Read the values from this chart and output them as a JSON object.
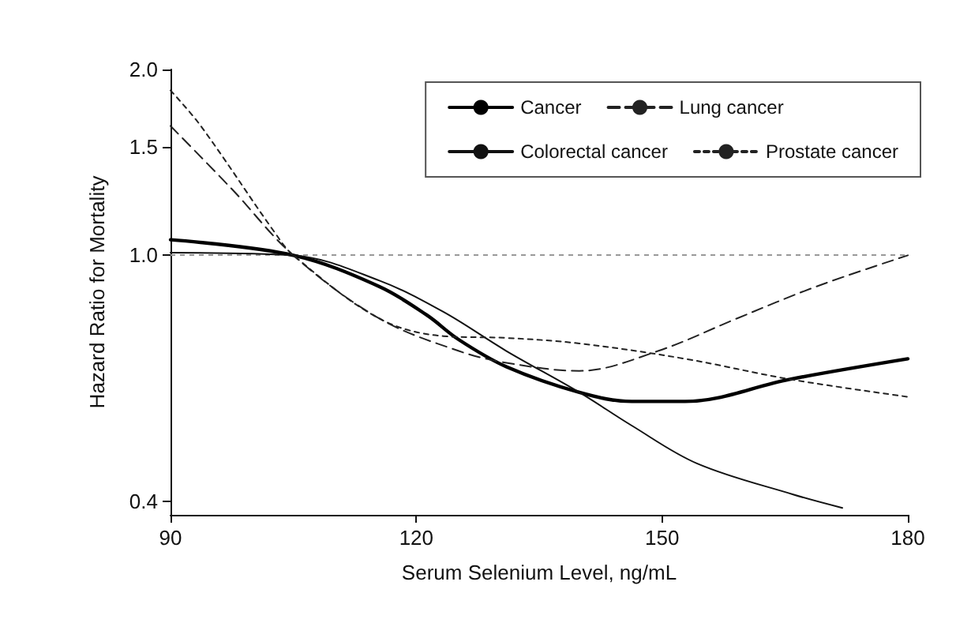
{
  "chart_data": {
    "type": "line",
    "xlabel": "Serum Selenium Level, ng/mL",
    "ylabel": "Hazard Ratio for Mortality",
    "log": "y",
    "xlim": [
      90,
      180
    ],
    "xticks": [
      90,
      120,
      150,
      180
    ],
    "ylim": [
      0.38,
      2.0
    ],
    "yticks": [
      0.4,
      {
        "value": 1,
        "label": "1.0"
      },
      1.5,
      {
        "value": 2,
        "label": "2.0"
      }
    ],
    "legend": "top right",
    "grid": false,
    "marker": "none",
    "ref_lines": [
      {
        "axis": "y",
        "value": 1.0,
        "color": "#999999",
        "line_style": "dotted"
      }
    ],
    "series": [
      {
        "name": "Cancer",
        "color": "#000000",
        "line_style": "solid",
        "x": [
          90,
          105,
          115.5,
          121.3,
          125.2,
          131,
          139.9,
          146.3,
          152.8,
          165.6,
          180
        ],
        "values": [
          1.06,
          1.0,
          0.89,
          0.8,
          0.73,
          0.66,
          0.6,
          0.58,
          0.58,
          0.63,
          0.68
        ]
      },
      {
        "name": "Lung cancer",
        "color": "#222222",
        "line_style": "dashed",
        "x": [
          90,
          97.5,
          105,
          115.5,
          125.2,
          131,
          139.9,
          149.5,
          159.1,
          168.8,
          180
        ],
        "values": [
          1.62,
          1.28,
          1.0,
          0.79,
          0.7,
          0.67,
          0.65,
          0.7,
          0.79,
          0.89,
          1.0
        ]
      },
      {
        "name": "Colorectal cancer",
        "color": "#111111",
        "line_style": "solid",
        "x": [
          90,
          105,
          115.5,
          123.3,
          131,
          139.9,
          146.3,
          154.3,
          166,
          172
        ],
        "values": [
          1.01,
          1.0,
          0.91,
          0.81,
          0.7,
          0.6,
          0.53,
          0.46,
          0.41,
          0.39
        ]
      },
      {
        "name": "Prostate cancer",
        "color": "#222222",
        "line_style": "dotted",
        "x": [
          90,
          93.7,
          102.7,
          105,
          115.5,
          123.3,
          131,
          139.9,
          152.8,
          165.6,
          180
        ],
        "values": [
          1.85,
          1.62,
          1.09,
          1.0,
          0.79,
          0.74,
          0.735,
          0.72,
          0.68,
          0.63,
          0.59
        ]
      }
    ]
  }
}
